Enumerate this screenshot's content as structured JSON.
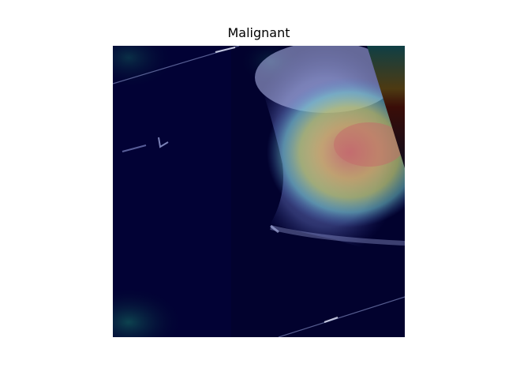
{
  "figure": {
    "title": "Malignant"
  },
  "image": {
    "icon": "ultrasound-heatmap-image",
    "colors": {
      "background": "#02022e",
      "hot": "#c46a6a",
      "warm": "#c7c36a",
      "cool": "#6fc7c8",
      "cold": "#8f9be0"
    }
  }
}
